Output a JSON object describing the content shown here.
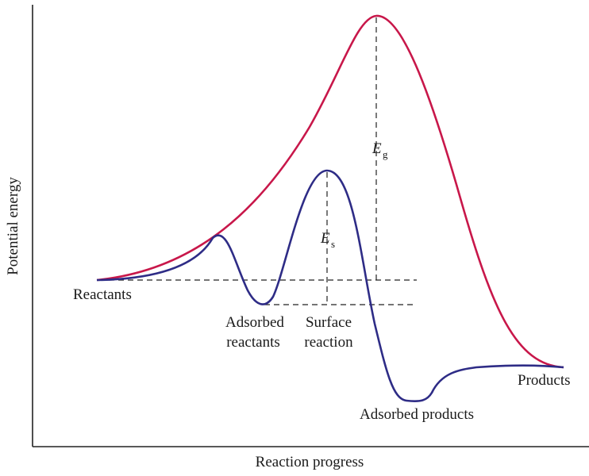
{
  "axes": {
    "x_label": "Reaction progress",
    "y_label": "Potential energy"
  },
  "labels": {
    "reactants": "Reactants",
    "adsorbed_reactants_line1": "Adsorbed",
    "adsorbed_reactants_line2": "reactants",
    "surface_reaction_line1": "Surface",
    "surface_reaction_line2": "reaction",
    "adsorbed_products": "Adsorbed products",
    "products": "Products",
    "eg_symbol": "E",
    "eg_subscript": "g",
    "es_symbol": "E",
    "es_subscript": "s"
  },
  "colors": {
    "gas_phase_curve": "#c8174a",
    "surface_curve": "#2e2c86",
    "axis": "#222222",
    "guide_lines": "#222222"
  }
}
